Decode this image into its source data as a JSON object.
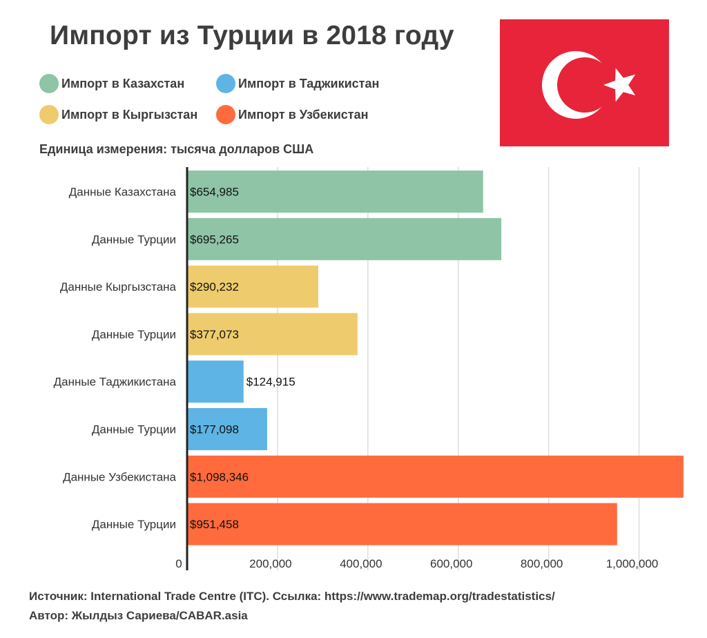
{
  "title": "Импорт из Турции в 2018 году",
  "legend": [
    {
      "label": "Импорт в Казахстан",
      "color": "#8fc4a6"
    },
    {
      "label": "Импорт в Таджикистан",
      "color": "#5db4e5"
    },
    {
      "label": "Импорт в Кыргызстан",
      "color": "#eecb6d"
    },
    {
      "label": "Импорт в Узбекистан",
      "color": "#ff6b3d"
    }
  ],
  "unit_label": "Единица измерения: тысяча долларов США",
  "flag": {
    "name": "turkey-flag",
    "red": "#e8243a",
    "white": "#ffffff"
  },
  "chart_data": {
    "type": "bar",
    "orientation": "horizontal",
    "categories": [
      "Данные Казахстана",
      "Данные Турции",
      "Данные Кыргызстана",
      "Данные Турции",
      "Данные Таджикистана",
      "Данные Турции",
      "Данные Узбекистана",
      "Данные Турции"
    ],
    "values": [
      654985,
      695265,
      290232,
      377073,
      124915,
      177098,
      1098346,
      951458
    ],
    "value_labels": [
      "$654,985",
      "$695,265",
      "$290,232",
      "$377,073",
      "$124,915",
      "$177,098",
      "$1,098,346",
      "$951,458"
    ],
    "colors": [
      "#8fc4a6",
      "#8fc4a6",
      "#eecb6d",
      "#eecb6d",
      "#5db4e5",
      "#5db4e5",
      "#ff6b3d",
      "#ff6b3d"
    ],
    "xlim": [
      0,
      1100000
    ],
    "x_ticks": [
      0,
      200000,
      400000,
      600000,
      800000,
      1000000
    ],
    "x_tick_labels": [
      "0",
      "200,000",
      "400,000",
      "600,000",
      "800,000",
      "1,000,000"
    ],
    "grid": true,
    "title": "Импорт из Турции в 2018 году"
  },
  "source": {
    "line1": "Источник: International Trade Centre (ITC). Ссылка: https://www.trademap.org/tradestatistics/",
    "line2": "Автор: Жылдыз Сариева/CABAR.asia"
  }
}
